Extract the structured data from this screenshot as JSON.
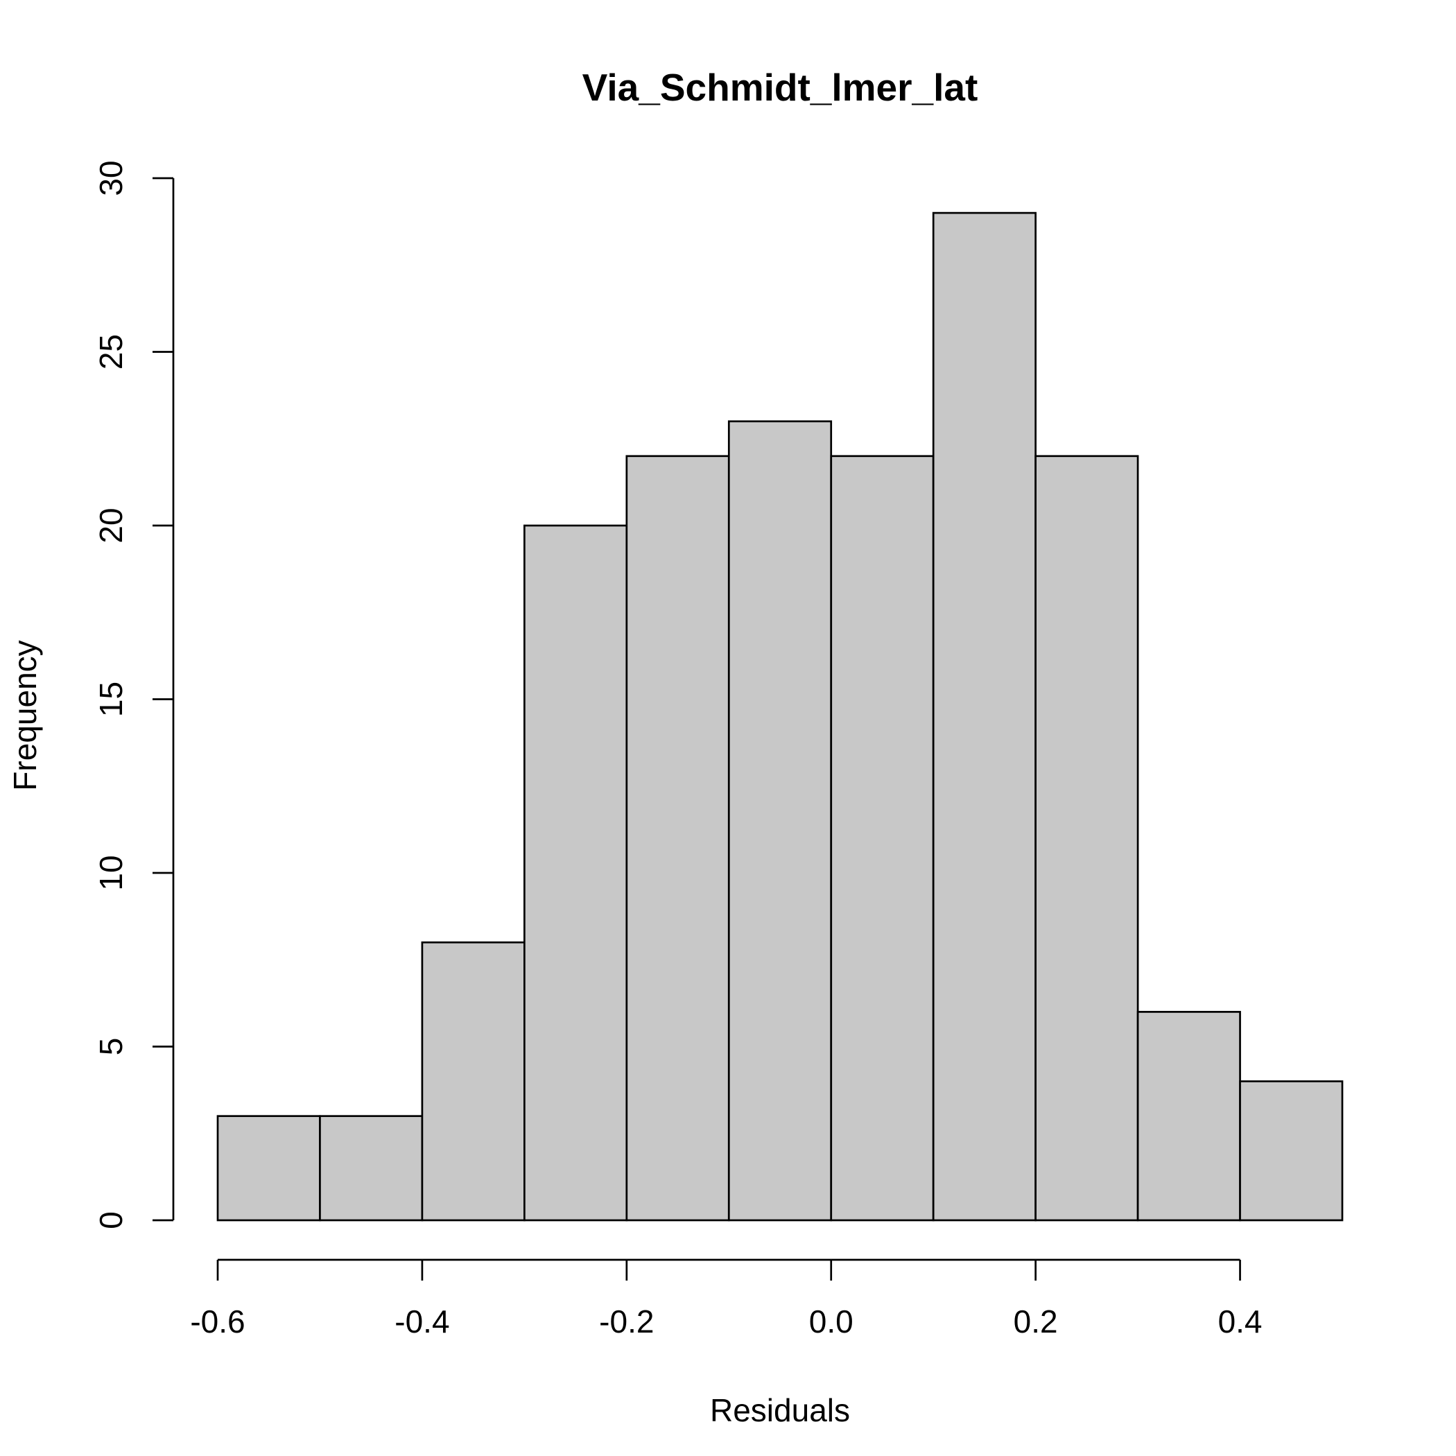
{
  "chart_data": {
    "type": "bar",
    "title": "Via_Schmidt_lmer_lat",
    "xlabel": "Residuals",
    "ylabel": "Frequency",
    "bins": [
      {
        "x0": -0.6,
        "x1": -0.5,
        "count": 3
      },
      {
        "x0": -0.5,
        "x1": -0.4,
        "count": 3
      },
      {
        "x0": -0.4,
        "x1": -0.3,
        "count": 8
      },
      {
        "x0": -0.3,
        "x1": -0.2,
        "count": 20
      },
      {
        "x0": -0.2,
        "x1": -0.1,
        "count": 22
      },
      {
        "x0": -0.1,
        "x1": 0.0,
        "count": 23
      },
      {
        "x0": 0.0,
        "x1": 0.1,
        "count": 22
      },
      {
        "x0": 0.1,
        "x1": 0.2,
        "count": 29
      },
      {
        "x0": 0.2,
        "x1": 0.3,
        "count": 22
      },
      {
        "x0": 0.3,
        "x1": 0.4,
        "count": 6
      },
      {
        "x0": 0.4,
        "x1": 0.5,
        "count": 4
      }
    ],
    "x_ticks": [
      -0.6,
      -0.4,
      -0.2,
      0.0,
      0.2,
      0.4
    ],
    "x_tick_labels": [
      "-0.6",
      "-0.4",
      "-0.2",
      "0.0",
      "0.2",
      "0.4"
    ],
    "y_ticks": [
      0,
      5,
      10,
      15,
      20,
      25,
      30
    ],
    "y_tick_labels": [
      "0",
      "5",
      "10",
      "15",
      "20",
      "25",
      "30"
    ],
    "xlim": [
      -0.6,
      0.5
    ],
    "ylim": [
      0,
      30
    ],
    "grid": false,
    "colors": {
      "bar_fill": "#c8c8c8",
      "bar_stroke": "#000000"
    }
  }
}
